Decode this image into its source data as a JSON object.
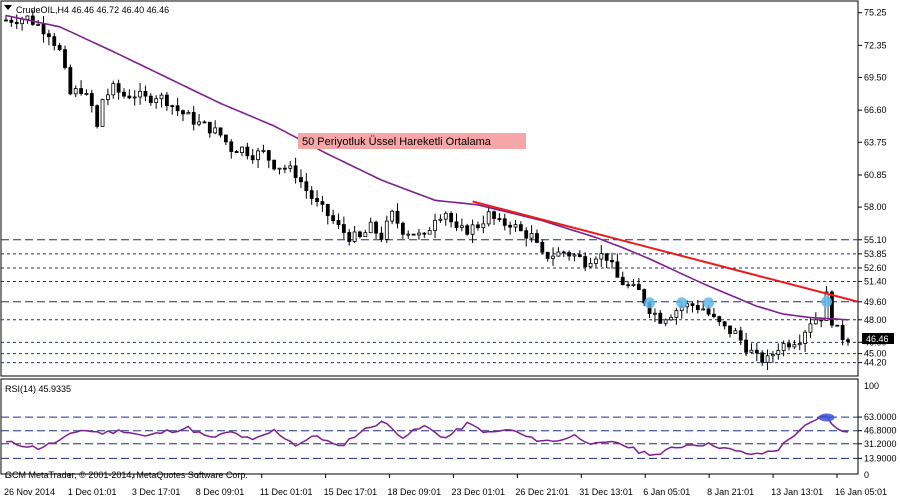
{
  "header": {
    "main_info": "CrudeOIL,H4  46.46 46.72 46.40 46.46",
    "rsi_info": "RSI(14) 45.9335",
    "copyright": "GCM MetaTrader, © 2001-2014, MetaQuotes Software Corp."
  },
  "annotation": {
    "text": "50 Periyotluk Üssel Hareketli Ortalama",
    "bg": "#f7a6a8"
  },
  "colors": {
    "candle": "#000000",
    "ema": "#7f1f8f",
    "trendline": "#e81c1c",
    "hline": "#1f2f7f",
    "rsi": "#7f1f8f",
    "marker": "#5fb8ea",
    "rsi_marker": "#3a52d8"
  },
  "chart_data": [
    {
      "type": "candlestick",
      "title": "CrudeOIL,H4",
      "y_tick_labels": [
        "75.25",
        "72.35",
        "69.50",
        "66.60",
        "63.75",
        "60.85",
        "58.00"
      ],
      "x_tick_labels": [
        "26 Nov 2014",
        "1 Dec 01:01",
        "3 Dec 17:01",
        "8 Dec 09:01",
        "11 Dec 01:01",
        "15 Dec 17:01",
        "18 Dec 09:01",
        "23 Dec 01:01",
        "26 Dec 21:01",
        "31 Dec 13:01",
        "6 Jan 05:01",
        "8 Jan 21:01",
        "13 Jan 13:01",
        "16 Jan 05:01"
      ],
      "ylim": [
        43.1,
        76.2
      ],
      "price_levels": [
        "55.10",
        "53.85",
        "52.60",
        "51.40",
        "49.60",
        "48.00",
        "46.00",
        "45.00",
        "44.20"
      ],
      "current_price": "46.46",
      "trend_line": {
        "from_date": "18 Dec",
        "from": 58.5,
        "to_date": "16 Jan",
        "to": 49.6
      },
      "close_path": [
        [
          0,
          74.6
        ],
        [
          4,
          74.8
        ],
        [
          8,
          73.5
        ],
        [
          10,
          71.8
        ],
        [
          12,
          68.0
        ],
        [
          14,
          68.5
        ],
        [
          16,
          66.9
        ],
        [
          17,
          65.0
        ],
        [
          18,
          67.6
        ],
        [
          20,
          68.5
        ],
        [
          22,
          67.9
        ],
        [
          24,
          68.0
        ],
        [
          26,
          67.6
        ],
        [
          28,
          67.9
        ],
        [
          30,
          67.5
        ],
        [
          32,
          66.6
        ],
        [
          34,
          66.0
        ],
        [
          36,
          65.4
        ],
        [
          38,
          65.0
        ],
        [
          40,
          64.4
        ],
        [
          42,
          63.2
        ],
        [
          44,
          63.2
        ],
        [
          46,
          62.7
        ],
        [
          48,
          62.8
        ],
        [
          50,
          61.8
        ],
        [
          52,
          61.5
        ],
        [
          54,
          61.0
        ],
        [
          56,
          59.5
        ],
        [
          58,
          58.2
        ],
        [
          60,
          57.3
        ],
        [
          62,
          56.2
        ],
        [
          64,
          55.4
        ],
        [
          66,
          55.2
        ],
        [
          68,
          56.2
        ],
        [
          70,
          55.4
        ],
        [
          72,
          57.3
        ],
        [
          74,
          56.0
        ],
        [
          76,
          55.7
        ],
        [
          78,
          55.2
        ],
        [
          80,
          57.2
        ],
        [
          82,
          57.6
        ],
        [
          84,
          55.8
        ],
        [
          86,
          56.0
        ],
        [
          88,
          56.4
        ],
        [
          90,
          57.3
        ],
        [
          92,
          56.5
        ],
        [
          94,
          56.6
        ],
        [
          96,
          55.8
        ],
        [
          98,
          55.4
        ],
        [
          100,
          53.6
        ],
        [
          102,
          53.8
        ],
        [
          104,
          54.0
        ],
        [
          106,
          53.7
        ],
        [
          108,
          53.2
        ],
        [
          110,
          53.8
        ],
        [
          112,
          53.6
        ],
        [
          114,
          51.7
        ],
        [
          116,
          50.9
        ],
        [
          118,
          50.5
        ],
        [
          120,
          49.0
        ],
        [
          122,
          48.1
        ],
        [
          124,
          48.6
        ],
        [
          126,
          49.2
        ],
        [
          128,
          49.3
        ],
        [
          130,
          49.0
        ],
        [
          132,
          48.0
        ],
        [
          134,
          47.2
        ],
        [
          136,
          46.8
        ],
        [
          138,
          45.6
        ],
        [
          140,
          44.6
        ],
        [
          142,
          44.4
        ],
        [
          144,
          45.6
        ],
        [
          146,
          46.0
        ],
        [
          148,
          46.4
        ],
        [
          150,
          47.9
        ],
        [
          152,
          48.3
        ],
        [
          153,
          50.1
        ],
        [
          154,
          48.0
        ],
        [
          155,
          47.0
        ],
        [
          156,
          46.5
        ],
        [
          157,
          46.46
        ]
      ],
      "ema50_path": [
        [
          0,
          75.0
        ],
        [
          10,
          74.0
        ],
        [
          20,
          71.8
        ],
        [
          30,
          69.5
        ],
        [
          40,
          67.2
        ],
        [
          50,
          65.2
        ],
        [
          60,
          62.7
        ],
        [
          70,
          60.4
        ],
        [
          80,
          58.6
        ],
        [
          88,
          58.2
        ],
        [
          100,
          56.8
        ],
        [
          110,
          55.3
        ],
        [
          115,
          54.4
        ],
        [
          120,
          53.4
        ],
        [
          125,
          52.3
        ],
        [
          130,
          51.2
        ],
        [
          135,
          50.2
        ],
        [
          140,
          49.2
        ],
        [
          145,
          48.5
        ],
        [
          150,
          48.2
        ],
        [
          157,
          48.0
        ]
      ],
      "markers": [
        {
          "bar": 120,
          "value": 49.5
        },
        {
          "bar": 126,
          "value": 49.5
        },
        {
          "bar": 131,
          "value": 49.5
        },
        {
          "bar": 153,
          "value": 49.6
        }
      ]
    },
    {
      "type": "line",
      "title": "RSI(14) 45.9335",
      "ylim": [
        0,
        100
      ],
      "levels": [
        "63.0000",
        "46.8000",
        "31.2000",
        "13.9000"
      ],
      "values": [
        [
          0,
          33
        ],
        [
          3,
          30
        ],
        [
          6,
          26
        ],
        [
          10,
          35
        ],
        [
          14,
          48
        ],
        [
          18,
          44
        ],
        [
          22,
          47
        ],
        [
          26,
          40
        ],
        [
          30,
          46
        ],
        [
          34,
          50
        ],
        [
          38,
          38
        ],
        [
          42,
          45
        ],
        [
          46,
          35
        ],
        [
          50,
          47
        ],
        [
          54,
          30
        ],
        [
          58,
          41
        ],
        [
          62,
          27
        ],
        [
          66,
          45
        ],
        [
          70,
          58
        ],
        [
          74,
          40
        ],
        [
          78,
          52
        ],
        [
          82,
          38
        ],
        [
          86,
          55
        ],
        [
          90,
          44
        ],
        [
          94,
          48
        ],
        [
          98,
          37
        ],
        [
          102,
          34
        ],
        [
          106,
          41
        ],
        [
          110,
          30
        ],
        [
          114,
          33
        ],
        [
          118,
          22
        ],
        [
          122,
          18
        ],
        [
          124,
          26
        ],
        [
          128,
          31
        ],
        [
          132,
          30
        ],
        [
          136,
          22
        ],
        [
          140,
          18
        ],
        [
          144,
          25
        ],
        [
          148,
          48
        ],
        [
          152,
          62
        ],
        [
          153,
          64
        ],
        [
          154,
          56
        ],
        [
          155,
          48
        ],
        [
          156,
          45
        ],
        [
          157,
          46
        ]
      ],
      "marker": {
        "bar": 153,
        "value": 62.5
      }
    }
  ]
}
